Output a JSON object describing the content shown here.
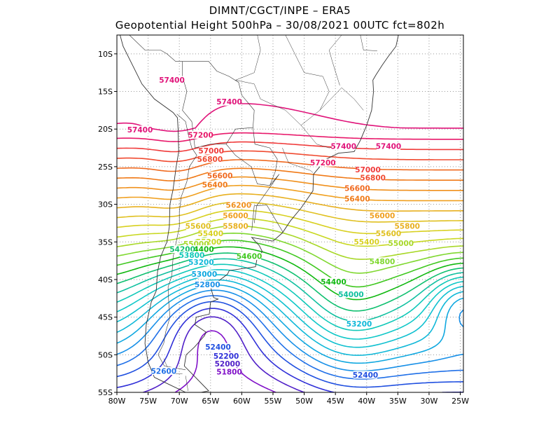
{
  "header": {
    "line1": "DIMNT/CGCT/INPE –  ERA5",
    "line2": "Geopotential Height 500hPa –  30/08/2021 00UTC fct=802h"
  },
  "axes": {
    "lat_labels": [
      "10S",
      "15S",
      "20S",
      "25S",
      "30S",
      "35S",
      "40S",
      "45S",
      "50S",
      "55S"
    ],
    "lon_labels": [
      "80W",
      "75W",
      "70W",
      "65W",
      "60W",
      "55W",
      "50W",
      "45W",
      "40W",
      "35W",
      "30W",
      "25W"
    ],
    "lat_range": [
      -55,
      -7.5
    ],
    "lon_range": [
      -80,
      -24.5
    ]
  },
  "contour_colors": {
    "57400": "#e0147a",
    "57200": "#e8186a",
    "57000": "#f03a3a",
    "56800": "#f04a30",
    "56600": "#f06a20",
    "56400": "#f07a18",
    "56200": "#f0901c",
    "56000": "#f0a020",
    "55800": "#e8b020",
    "55600": "#e0c020",
    "55400": "#d8d020",
    "55200": "#c8d820",
    "55000": "#a8d828",
    "54800": "#80d830",
    "54600": "#40c820",
    "54400": "#10b810",
    "54200": "#10c070",
    "54000": "#10c0a0",
    "53800": "#10c8b8",
    "53600": "#10c8c8",
    "53400": "#10c0d0",
    "53200": "#10b8d8",
    "53000": "#10a8e0",
    "52800": "#1890e8",
    "52600": "#2070e8",
    "52400": "#2050e0",
    "52200": "#3030d8",
    "52000": "#5020c8",
    "51800": "#8010c8"
  },
  "contour_labels": [
    {
      "text": "57400",
      "lon": -76.3,
      "lat": -20.3
    },
    {
      "text": "57400",
      "lon": -71.2,
      "lat": -13.7
    },
    {
      "text": "57400",
      "lon": -62.0,
      "lat": -16.6
    },
    {
      "text": "57400",
      "lon": -43.7,
      "lat": -22.5
    },
    {
      "text": "57400",
      "lon": -36.5,
      "lat": -22.5
    },
    {
      "text": "57200",
      "lon": -66.6,
      "lat": -21.0
    },
    {
      "text": "57200",
      "lon": -47.0,
      "lat": -24.7
    },
    {
      "text": "57000",
      "lon": -64.9,
      "lat": -23.1
    },
    {
      "text": "57000",
      "lon": -39.8,
      "lat": -25.6
    },
    {
      "text": "56800",
      "lon": -65.1,
      "lat": -24.2
    },
    {
      "text": "56800",
      "lon": -39.0,
      "lat": -26.7
    },
    {
      "text": "56600",
      "lon": -63.5,
      "lat": -26.4
    },
    {
      "text": "56600",
      "lon": -41.5,
      "lat": -28.1
    },
    {
      "text": "56400",
      "lon": -64.3,
      "lat": -27.6
    },
    {
      "text": "56400",
      "lon": -41.5,
      "lat": -29.5
    },
    {
      "text": "56200",
      "lon": -60.5,
      "lat": -30.3
    },
    {
      "text": "56000",
      "lon": -61.0,
      "lat": -31.7
    },
    {
      "text": "56000",
      "lon": -37.5,
      "lat": -31.7
    },
    {
      "text": "55800",
      "lon": -61.0,
      "lat": -33.1
    },
    {
      "text": "55800",
      "lon": -33.5,
      "lat": -33.1
    },
    {
      "text": "55600",
      "lon": -67.0,
      "lat": -33.1
    },
    {
      "text": "55600",
      "lon": -36.5,
      "lat": -34.1
    },
    {
      "text": "55400",
      "lon": -65.0,
      "lat": -34.1
    },
    {
      "text": "55400",
      "lon": -40.0,
      "lat": -35.2
    },
    {
      "text": "55200",
      "lon": -65.3,
      "lat": -35.2
    },
    {
      "text": "55000",
      "lon": -67.3,
      "lat": -35.5
    },
    {
      "text": "55000",
      "lon": -34.5,
      "lat": -35.4
    },
    {
      "text": "54800",
      "lon": -37.5,
      "lat": -37.8
    },
    {
      "text": "54600",
      "lon": -58.8,
      "lat": -37.1
    },
    {
      "text": "54400",
      "lon": -66.5,
      "lat": -36.2
    },
    {
      "text": "54400",
      "lon": -45.3,
      "lat": -40.5
    },
    {
      "text": "54200",
      "lon": -69.5,
      "lat": -36.2
    },
    {
      "text": "54000",
      "lon": -42.5,
      "lat": -42.2
    },
    {
      "text": "53800",
      "lon": -68.0,
      "lat": -37.0
    },
    {
      "text": "53200",
      "lon": -66.5,
      "lat": -37.9
    },
    {
      "text": "53200",
      "lon": -41.2,
      "lat": -46.1
    },
    {
      "text": "53000",
      "lon": -66.0,
      "lat": -39.5
    },
    {
      "text": "52800",
      "lon": -65.5,
      "lat": -40.9
    },
    {
      "text": "52600",
      "lon": -72.5,
      "lat": -52.4
    },
    {
      "text": "52400",
      "lon": -63.8,
      "lat": -49.2
    },
    {
      "text": "52400",
      "lon": -40.2,
      "lat": -52.9
    },
    {
      "text": "52200",
      "lon": -62.5,
      "lat": -50.4
    },
    {
      "text": "52000",
      "lon": -62.3,
      "lat": -51.4
    },
    {
      "text": "51800",
      "lon": -62.0,
      "lat": -52.5
    }
  ]
}
